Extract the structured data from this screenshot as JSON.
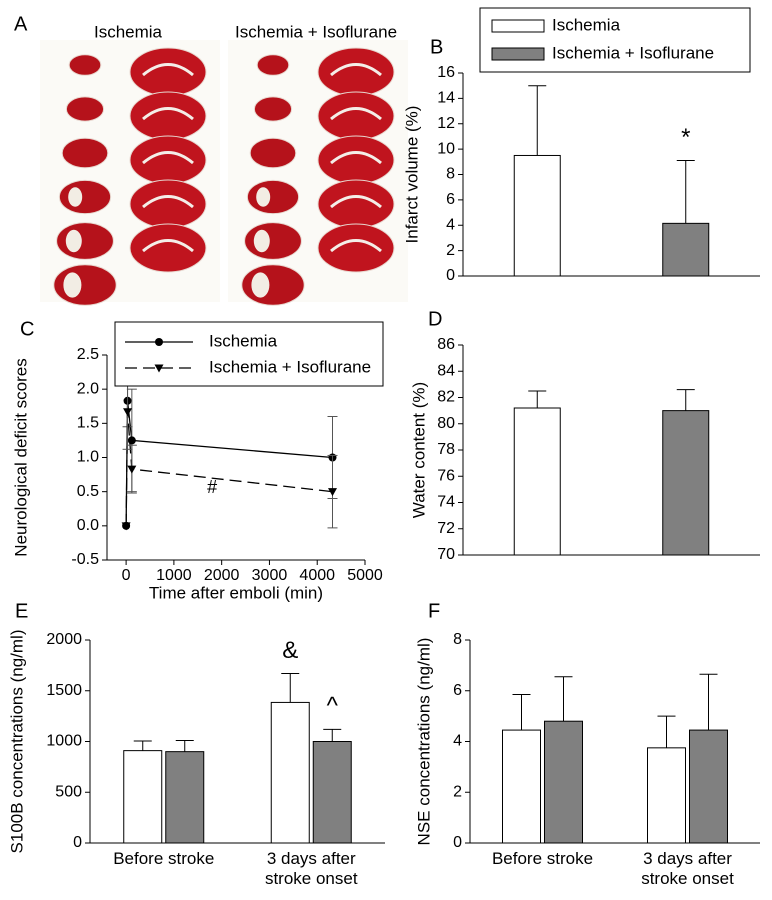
{
  "chart_data": [
    {
      "type": "image",
      "panel": "A",
      "labels": [
        "Ischemia",
        "Ischemia + Isoflurane"
      ]
    },
    {
      "type": "bar",
      "panel": "B",
      "y_label": "Infarct volume (%)",
      "ylim": [
        0,
        16
      ],
      "yticks": [
        0,
        2,
        4,
        6,
        8,
        10,
        12,
        14,
        16
      ],
      "legend": "top",
      "series": [
        {
          "name": "Ischemia",
          "color": "#ffffff",
          "values": [
            9.5
          ],
          "errors": [
            5.5
          ]
        },
        {
          "name": "Ischemia + Isoflurane",
          "color": "#808080",
          "values": [
            4.15
          ],
          "errors": [
            4.95
          ],
          "annotations": [
            "*"
          ]
        }
      ]
    },
    {
      "type": "line",
      "panel": "C",
      "x_label": "Time after emboli (min)",
      "y_label": "Neurological deficit scores",
      "xlim": [
        -400,
        5000
      ],
      "xticks": [
        0,
        1000,
        2000,
        3000,
        4000,
        5000
      ],
      "ylim": [
        -0.5,
        2.5
      ],
      "yticks": [
        -0.5,
        {
          "value": 0,
          "label": "0.0"
        },
        0.5,
        {
          "value": 1,
          "label": "1.0"
        },
        1.5,
        {
          "value": 2,
          "label": "2.0"
        },
        2.5
      ],
      "legend": "top",
      "x": [
        0,
        30,
        120,
        4320
      ],
      "series": [
        {
          "name": "Ischemia",
          "color": "#000000",
          "marker": "circle",
          "line_style": "solid",
          "values": [
            0,
            1.83,
            1.25,
            1.0
          ],
          "errors": [
            null,
            0.38,
            0.75,
            0.6
          ]
        },
        {
          "name": "Ischemia + Isoflurane",
          "color": "#000000",
          "marker": "triangle-down",
          "line_style": "dashed",
          "values": [
            0,
            1.67,
            0.83,
            0.5
          ],
          "errors": [
            null,
            0.55,
            0.35,
            0.53
          ]
        }
      ],
      "annotations": [
        {
          "text": "#",
          "x": 1800,
          "y": 0.55
        }
      ]
    },
    {
      "type": "bar",
      "panel": "D",
      "y_label": "Water content (%)",
      "ylim": [
        70,
        86
      ],
      "yticks": [
        70,
        72,
        74,
        76,
        78,
        80,
        82,
        84,
        86
      ],
      "series": [
        {
          "color": "#ffffff",
          "values": [
            81.2
          ],
          "errors": [
            1.3
          ]
        },
        {
          "color": "#808080",
          "values": [
            81.0
          ],
          "errors": [
            1.6
          ]
        }
      ]
    },
    {
      "type": "bar",
      "panel": "E",
      "y_label": "S100B concentrations (ng/ml)",
      "ylim": [
        0,
        2000
      ],
      "yticks": [
        0,
        500,
        1000,
        1500,
        2000
      ],
      "categories": [
        "Before stroke",
        "3 days after\nstroke onset"
      ],
      "series": [
        {
          "color": "#ffffff",
          "values": [
            910,
            1385
          ],
          "errors": [
            95,
            285
          ],
          "annotations": [
            null,
            "&"
          ]
        },
        {
          "color": "#808080",
          "values": [
            900,
            1000
          ],
          "errors": [
            110,
            120
          ],
          "annotations": [
            null,
            "^"
          ]
        }
      ]
    },
    {
      "type": "bar",
      "panel": "F",
      "y_label": "NSE concentrations (ng/ml)",
      "ylim": [
        0,
        8
      ],
      "yticks": [
        0,
        2,
        4,
        6,
        8
      ],
      "categories": [
        "Before stroke",
        "3 days after\nstroke onset"
      ],
      "series": [
        {
          "color": "#ffffff",
          "values": [
            4.45,
            3.75
          ],
          "errors": [
            1.4,
            1.25
          ]
        },
        {
          "color": "#808080",
          "values": [
            4.8,
            4.45
          ],
          "errors": [
            1.75,
            2.2
          ]
        }
      ]
    }
  ]
}
